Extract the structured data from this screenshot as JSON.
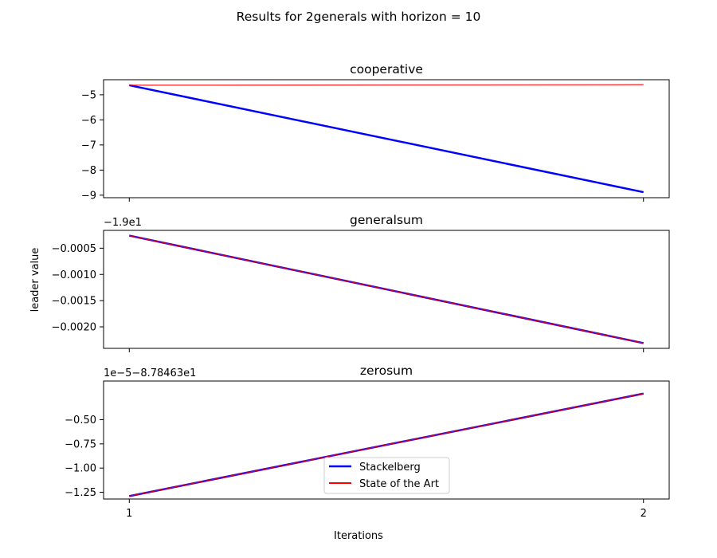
{
  "figure": {
    "suptitle": "Results for 2generals with horizon = 10",
    "xlabel": "Iterations",
    "ylabel": "leader value"
  },
  "legend": {
    "placement": "lower center",
    "entries": [
      {
        "label": "Stackelberg",
        "color": "#0000ff"
      },
      {
        "label": "State of the Art",
        "color": "#ff0000"
      }
    ]
  },
  "chart_data": [
    {
      "type": "line",
      "title": "cooperative",
      "x": [
        1,
        2
      ],
      "xticks": [
        1,
        2
      ],
      "xlim": [
        0.95,
        2.05
      ],
      "ylim": [
        -9.1,
        -4.4
      ],
      "yticks": [
        -9,
        -8,
        -7,
        -6,
        -5
      ],
      "ytick_labels": [
        "−9",
        "−8",
        "−7",
        "−6",
        "−5"
      ],
      "offset_text": "",
      "series": [
        {
          "name": "Stackelberg",
          "color": "#0000ff",
          "values": [
            -4.62,
            -8.88
          ]
        },
        {
          "name": "State of the Art",
          "color": "#ff0000",
          "values": [
            -4.62,
            -4.6
          ]
        }
      ]
    },
    {
      "type": "line",
      "title": "generalsum",
      "x": [
        1,
        2
      ],
      "xticks": [
        1,
        2
      ],
      "xlim": [
        0.95,
        2.05
      ],
      "ylim": [
        -0.00241,
        -0.00016
      ],
      "yticks": [
        -0.002,
        -0.0015,
        -0.001,
        -0.0005
      ],
      "ytick_labels": [
        "−0.0020",
        "−0.0015",
        "−0.0010",
        "−0.0005"
      ],
      "offset_text": "−1.9e1",
      "series": [
        {
          "name": "Stackelberg",
          "color": "#0000ff",
          "values": [
            -0.00026,
            -0.00231
          ]
        },
        {
          "name": "State of the Art",
          "color": "#ff0000",
          "values": [
            -0.00026,
            -0.00231
          ]
        }
      ]
    },
    {
      "type": "line",
      "title": "zerosum",
      "x": [
        1,
        2
      ],
      "xticks": [
        1,
        2
      ],
      "xlim": [
        0.95,
        2.05
      ],
      "ylim": [
        -1.32,
        -0.1
      ],
      "yticks": [
        -1.25,
        -1.0,
        -0.75,
        -0.5
      ],
      "ytick_labels": [
        "−1.25",
        "−1.00",
        "−0.75",
        "−0.50"
      ],
      "offset_text": "1e−5−8.78463e1",
      "series": [
        {
          "name": "Stackelberg",
          "color": "#0000ff",
          "values": [
            -1.29,
            -0.23
          ]
        },
        {
          "name": "State of the Art",
          "color": "#ff0000",
          "values": [
            -1.29,
            -0.23
          ]
        }
      ]
    }
  ]
}
